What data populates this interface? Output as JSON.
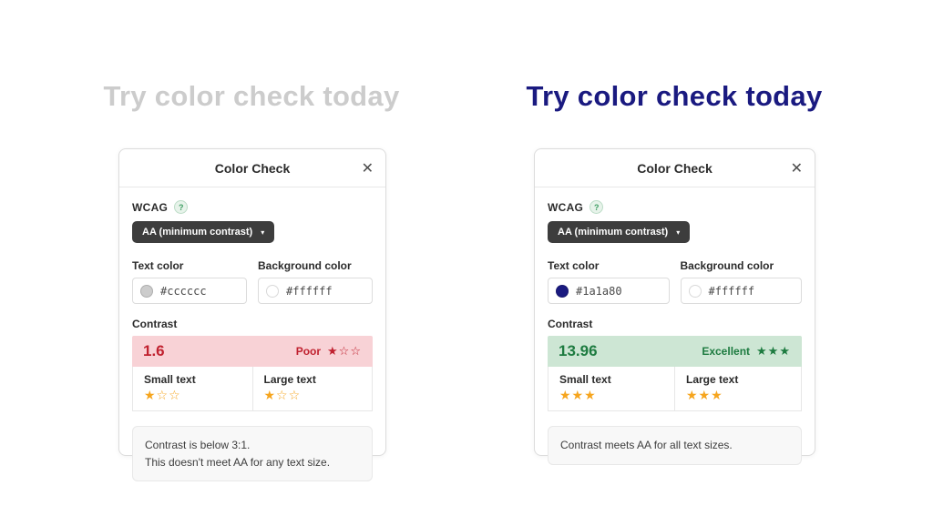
{
  "headlines": [
    {
      "text": "Try color check today",
      "color": "#cccccc"
    },
    {
      "text": "Try color check today",
      "color": "#1a1a80"
    }
  ],
  "colors": {
    "star_orange": "#f6a51e"
  },
  "panels": [
    {
      "title": "Color Check",
      "close_glyph": "✕",
      "wcag": {
        "label": "WCAG",
        "help_glyph": "?"
      },
      "dropdown": {
        "label": "AA (minimum contrast)",
        "caret_glyph": "▾"
      },
      "text_color_field": {
        "label": "Text color",
        "value": "#cccccc",
        "swatch": "#cccccc"
      },
      "background_color_field": {
        "label": "Background color",
        "value": "#ffffff",
        "swatch": "#ffffff"
      },
      "contrast": {
        "label": "Contrast",
        "value": "1.6",
        "rating_label": "Poor",
        "rating_stars": "★☆☆",
        "banner_bg": "#f8d2d6",
        "banner_text": "#c0212f",
        "small": {
          "label": "Small text",
          "stars": "★☆☆"
        },
        "large": {
          "label": "Large text",
          "stars": "★☆☆"
        }
      },
      "note": {
        "line1": "Contrast is below 3:1.",
        "line2": "This doesn't meet AA for any text size."
      }
    },
    {
      "title": "Color Check",
      "close_glyph": "✕",
      "wcag": {
        "label": "WCAG",
        "help_glyph": "?"
      },
      "dropdown": {
        "label": "AA (minimum contrast)",
        "caret_glyph": "▾"
      },
      "text_color_field": {
        "label": "Text color",
        "value": "#1a1a80",
        "swatch": "#1a1a80"
      },
      "background_color_field": {
        "label": "Background color",
        "value": "#ffffff",
        "swatch": "#ffffff"
      },
      "contrast": {
        "label": "Contrast",
        "value": "13.96",
        "rating_label": "Excellent",
        "rating_stars": "★★★",
        "banner_bg": "#cde6d4",
        "banner_text": "#1d7b40",
        "small": {
          "label": "Small text",
          "stars": "★★★"
        },
        "large": {
          "label": "Large text",
          "stars": "★★★"
        }
      },
      "note": {
        "line1": "Contrast meets AA for all text sizes."
      }
    }
  ]
}
